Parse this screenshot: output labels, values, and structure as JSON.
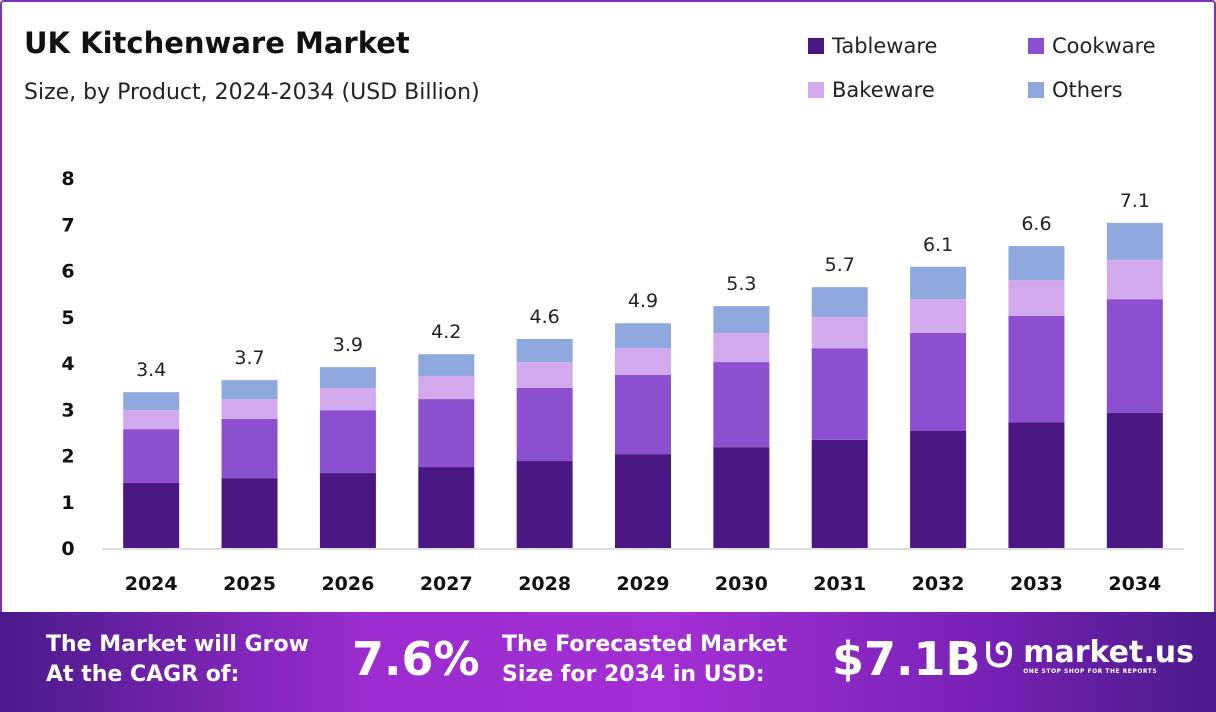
{
  "chart_data": {
    "type": "bar",
    "stacked": true,
    "title": "UK Kitchenware Market",
    "subtitle": "Size, by Product, 2024-2034 (USD Billion)",
    "xlabel": "",
    "ylabel": "",
    "ylim": [
      0,
      8
    ],
    "yticks": [
      "0",
      "1",
      "2",
      "3",
      "4",
      "5",
      "6",
      "7",
      "8"
    ],
    "grid": false,
    "legend_position": "top-right",
    "categories": [
      "2024",
      "2025",
      "2026",
      "2027",
      "2028",
      "2029",
      "2030",
      "2031",
      "2032",
      "2033",
      "2034"
    ],
    "totals": [
      "3.4",
      "3.7",
      "3.9",
      "4.2",
      "4.6",
      "4.9",
      "5.3",
      "5.7",
      "6.1",
      "6.6",
      "7.1"
    ],
    "series": [
      {
        "name": "Tableware",
        "color": "#4b1782",
        "values": [
          1.41,
          1.51,
          1.62,
          1.75,
          1.88,
          2.03,
          2.18,
          2.34,
          2.53,
          2.72,
          2.92
        ]
      },
      {
        "name": "Cookware",
        "color": "#8c4fd0",
        "values": [
          1.16,
          1.28,
          1.36,
          1.47,
          1.58,
          1.71,
          1.84,
          1.98,
          2.12,
          2.3,
          2.46
        ]
      },
      {
        "name": "Bakeware",
        "color": "#d3a9ee",
        "values": [
          0.41,
          0.43,
          0.48,
          0.5,
          0.56,
          0.58,
          0.63,
          0.67,
          0.73,
          0.77,
          0.85
        ]
      },
      {
        "name": "Others",
        "color": "#8fa8dd",
        "values": [
          0.39,
          0.41,
          0.45,
          0.47,
          0.5,
          0.54,
          0.58,
          0.65,
          0.7,
          0.74,
          0.8
        ]
      }
    ]
  },
  "footer": {
    "cagr_label_1": "The Market will Grow",
    "cagr_label_2": "At the CAGR of:",
    "cagr_value": "7.6%",
    "forecast_label_1": "The Forecasted Market",
    "forecast_label_2": "Size for 2034 in USD:",
    "forecast_value": "$7.1B",
    "brand": "market.us",
    "tagline": "ONE STOP SHOP FOR THE REPORTS"
  }
}
